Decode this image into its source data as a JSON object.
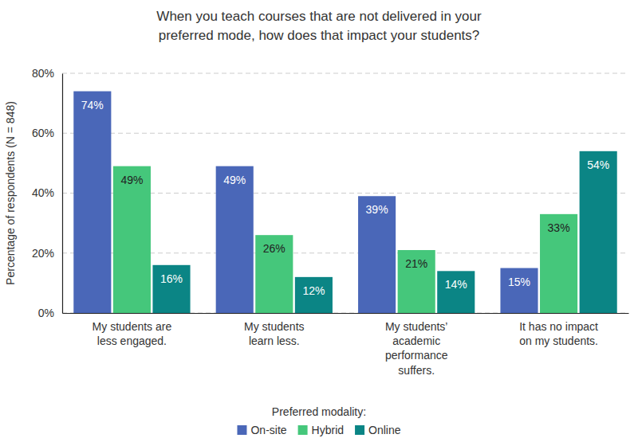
{
  "chart_data": {
    "type": "bar",
    "title": "When you teach courses that are not delivered in your preferred mode, how does that impact your students?",
    "y_label": "Percentage of respondents (N = 848)",
    "legend_title": "Preferred modality:",
    "categories": [
      "My students are less engaged.",
      "My students learn less.",
      "My students’ academic performance suffers.",
      "It has no impact on my students."
    ],
    "series": [
      {
        "name": "On-site",
        "color": "#4a67b8",
        "values": [
          74,
          49,
          39,
          15
        ],
        "value_labels": [
          "74%",
          "49%",
          "39%",
          "15%"
        ]
      },
      {
        "name": "Hybrid",
        "color": "#45c77b",
        "values": [
          49,
          26,
          21,
          33
        ],
        "value_labels": [
          "49%",
          "26%",
          "21%",
          "33%"
        ]
      },
      {
        "name": "Online",
        "color": "#0b8585",
        "values": [
          16,
          12,
          14,
          54
        ],
        "value_labels": [
          "16%",
          "12%",
          "14%",
          "54%"
        ]
      }
    ],
    "ylim": [
      0,
      80
    ],
    "yticks": [
      {
        "value": 0,
        "label": "0%"
      },
      {
        "value": 20,
        "label": "20%"
      },
      {
        "value": 40,
        "label": "40%"
      },
      {
        "value": 60,
        "label": "60%"
      },
      {
        "value": 80,
        "label": "80%"
      }
    ],
    "grid": true,
    "legend": "bottom",
    "data_labels": true
  }
}
